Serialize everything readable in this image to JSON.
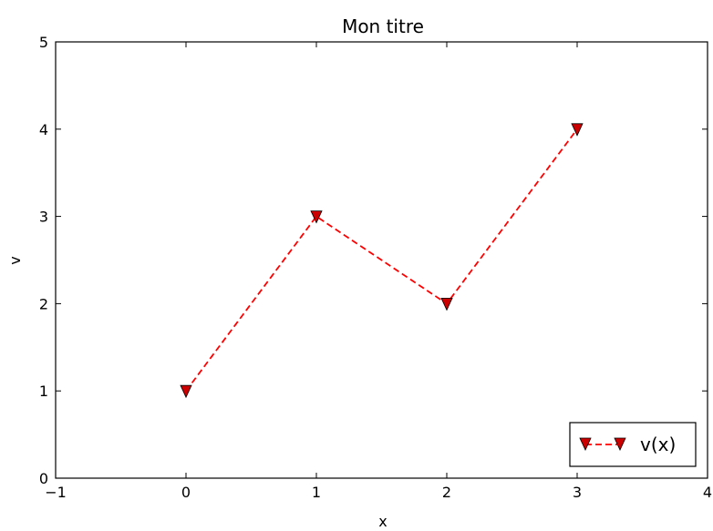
{
  "chart_data": {
    "type": "line",
    "title": "Mon titre",
    "xlabel": "x",
    "ylabel": "v",
    "xlim": [
      -1,
      4
    ],
    "ylim": [
      0,
      5
    ],
    "xticks": [
      -1,
      0,
      1,
      2,
      3,
      4
    ],
    "yticks": [
      0,
      1,
      2,
      3,
      4,
      5
    ],
    "xtick_labels": [
      "−1",
      "0",
      "1",
      "2",
      "3",
      "4"
    ],
    "ytick_labels": [
      "0",
      "1",
      "2",
      "3",
      "4",
      "5"
    ],
    "grid": false,
    "legend_position": "lower-right",
    "series": [
      {
        "name": "v(x)",
        "x": [
          0,
          1,
          2,
          3
        ],
        "y": [
          1,
          3,
          2,
          4
        ],
        "line_color": "#ff0000",
        "line_style": "dashed",
        "marker": "triangle-down",
        "marker_color": "#cc0000"
      }
    ]
  }
}
